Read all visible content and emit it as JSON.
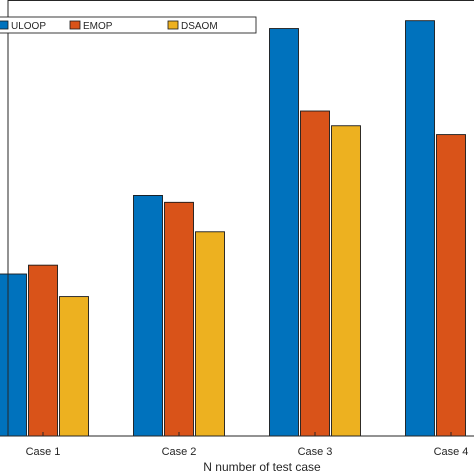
{
  "chart_data": {
    "type": "bar",
    "categories": [
      "Case 1",
      "Case 2",
      "Case 3",
      "Case 4"
    ],
    "series": [
      {
        "name": "ULOOP",
        "values": [
          165,
          245,
          415,
          423
        ],
        "color": "#0072BD"
      },
      {
        "name": "EMOP",
        "values": [
          174,
          238,
          331,
          307
        ],
        "color": "#D95319"
      },
      {
        "name": "DSAOM",
        "values": [
          142,
          208,
          316,
          0
        ],
        "color": "#EDB120"
      }
    ],
    "xlabel": "N number of test case",
    "ylabel": "",
    "ylim": [
      0,
      440
    ],
    "grid": false,
    "legend_position": "top-left"
  }
}
